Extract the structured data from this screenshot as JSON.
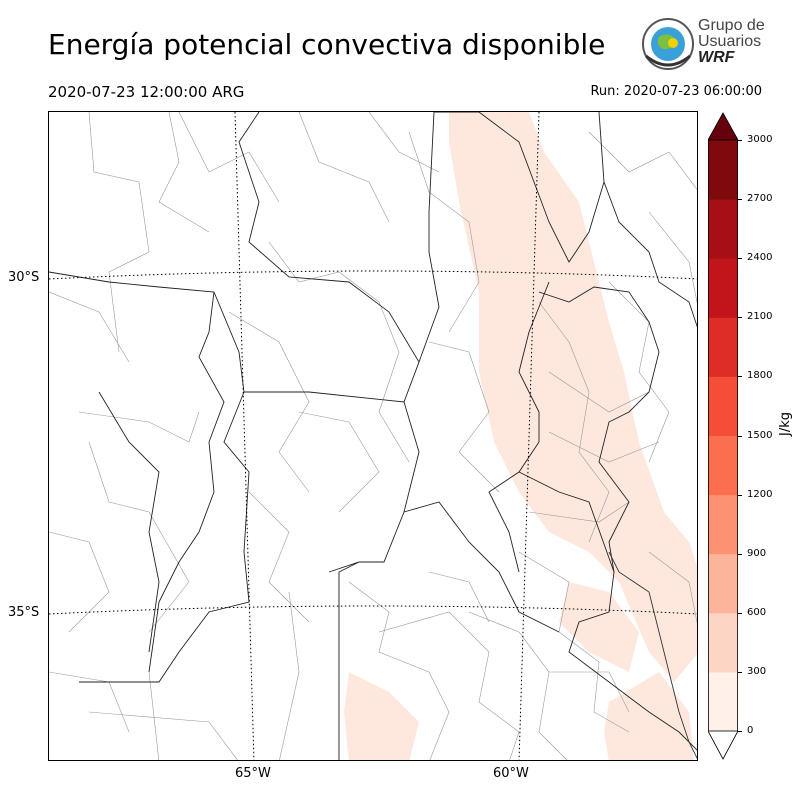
{
  "header": {
    "title": "Energía potencial convectiva disponible",
    "valid_time": "2020-07-23 12:00:00 ARG",
    "run_time": "Run: 2020-07-23 06:00:00"
  },
  "logo": {
    "line1": "Grupo de",
    "line2": "Usuarios",
    "line3": "WRF"
  },
  "map": {
    "lat_labels": [
      "30°S",
      "35°S"
    ],
    "lon_labels": [
      "65°W",
      "60°W"
    ],
    "variable": "CAPE",
    "shaded_range": "0-300 J/kg over NE Argentina, Entre Ríos and Buenos Aires coast"
  },
  "colorbar": {
    "unit": "J/kg",
    "ticks": [
      "0",
      "300",
      "600",
      "900",
      "1200",
      "1500",
      "1800",
      "2100",
      "2400",
      "2700",
      "3000"
    ],
    "colors": [
      "#fff0e9",
      "#fdd5c4",
      "#fcb59a",
      "#fc9272",
      "#fb6e4e",
      "#f44d38",
      "#de2d26",
      "#c1151b",
      "#a50f15",
      "#7f0a0e"
    ],
    "extend_over": "#67000d"
  }
}
